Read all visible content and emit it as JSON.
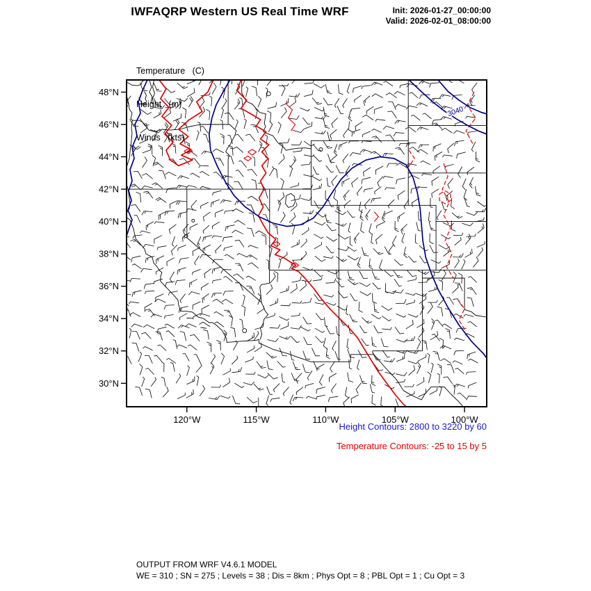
{
  "header": {
    "title": "IWFAQRP Western US Real Time WRF",
    "init_time": "Init: 2026-01-27_00:00:00",
    "valid_time": "Valid: 2026-02-01_08:00:00"
  },
  "variables": {
    "line1": "Temperature   (C)",
    "line2": "Height   (m)",
    "line3": "Winds   (kts)"
  },
  "axes": {
    "lat_ticks": [
      {
        "value": 48,
        "label": "48°N"
      },
      {
        "value": 46,
        "label": "46°N"
      },
      {
        "value": 44,
        "label": "44°N"
      },
      {
        "value": 42,
        "label": "42°N"
      },
      {
        "value": 40,
        "label": "40°N"
      },
      {
        "value": 38,
        "label": "38°N"
      },
      {
        "value": 36,
        "label": "36°N"
      },
      {
        "value": 34,
        "label": "34°N"
      },
      {
        "value": 32,
        "label": "32°N"
      },
      {
        "value": 30,
        "label": "30°N"
      }
    ],
    "lon_ticks": [
      {
        "value": -120,
        "label": "120°W"
      },
      {
        "value": -115,
        "label": "115°W"
      },
      {
        "value": -110,
        "label": "110°W"
      },
      {
        "value": -105,
        "label": "105°W"
      },
      {
        "value": -100,
        "label": "100°W"
      }
    ]
  },
  "map": {
    "contour_label": "3040"
  },
  "legend": {
    "height_text": "Height Contours: 2800 to 3220 by 60",
    "temperature_text": "Temperature Contours: -25 to 15 by 5"
  },
  "colors": {
    "height_contour": "#00008b",
    "height_legend_text": "#1a1acd",
    "temperature_contour": "#e10000",
    "temperature_legend_text": "#e00000",
    "geography": "#000000"
  },
  "footer": {
    "line1": "OUTPUT FROM WRF V4.6.1 MODEL",
    "line2": "WE = 310 ; SN = 275 ; Levels = 38 ; Dis = 8km ; Phys Opt = 8 ; PBL Opt = 1 ; Cu Opt = 3"
  },
  "chart_data": {
    "type": "contour",
    "title": "IWFAQRP Western US Real Time WRF",
    "init": "2026-01-27_00:00:00",
    "valid": "2026-02-01_08:00:00",
    "region": "Western United States",
    "fields": [
      {
        "name": "Temperature",
        "units": "C",
        "style": "red contours",
        "contour_min": -25,
        "contour_max": 15,
        "contour_interval": 5
      },
      {
        "name": "Height",
        "units": "m",
        "style": "blue contours",
        "contour_min": 2800,
        "contour_max": 3220,
        "contour_interval": 60,
        "visible_label": "3040"
      },
      {
        "name": "Winds",
        "units": "kts",
        "style": "wind barbs"
      }
    ],
    "x": {
      "label": "longitude",
      "tick_labels": [
        "120°W",
        "115°W",
        "110°W",
        "105°W",
        "100°W"
      ],
      "range_deg_west": [
        124.3,
        98.4
      ]
    },
    "y": {
      "label": "latitude",
      "tick_labels": [
        "48°N",
        "46°N",
        "44°N",
        "42°N",
        "40°N",
        "38°N",
        "36°N",
        "34°N",
        "32°N",
        "30°N"
      ],
      "range_deg_north": [
        28.6,
        48.75
      ]
    },
    "grid": false,
    "legend_position": "below-right"
  }
}
